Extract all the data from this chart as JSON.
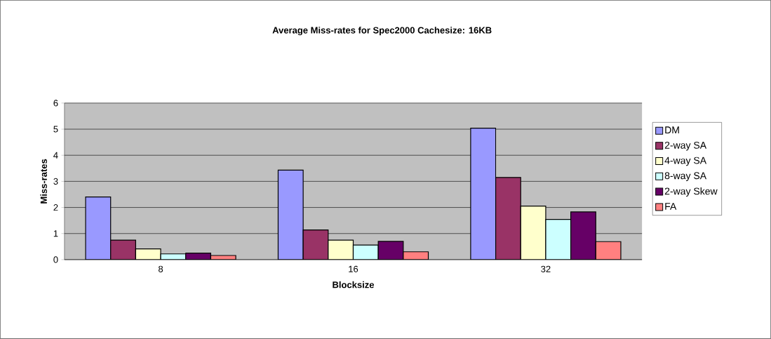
{
  "chart_data": {
    "type": "bar",
    "title": "Average Miss-rates for Spec2000 Cachesize: 16KB",
    "xlabel": "Blocksize",
    "ylabel": "Miss-rates",
    "categories": [
      "8",
      "16",
      "32"
    ],
    "series": [
      {
        "name": "DM",
        "color": "#9999ff",
        "values": [
          2.4,
          3.43,
          5.04
        ]
      },
      {
        "name": "2-way SA",
        "color": "#993366",
        "values": [
          0.75,
          1.14,
          3.15
        ]
      },
      {
        "name": "4-way SA",
        "color": "#ffffcc",
        "values": [
          0.41,
          0.75,
          2.05
        ]
      },
      {
        "name": "8-way SA",
        "color": "#ccffff",
        "values": [
          0.22,
          0.56,
          1.54
        ]
      },
      {
        "name": "2-way Skew",
        "color": "#660066",
        "values": [
          0.25,
          0.7,
          1.83
        ]
      },
      {
        "name": "FA",
        "color": "#ff8080",
        "values": [
          0.16,
          0.3,
          0.69
        ]
      }
    ],
    "ylim": [
      0,
      6
    ],
    "yticks": [
      0,
      1,
      2,
      3,
      4,
      5,
      6
    ],
    "grid": "y",
    "legend": "right"
  }
}
